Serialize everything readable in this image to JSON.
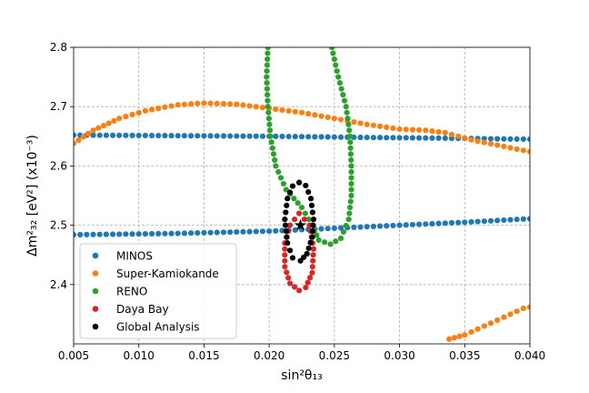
{
  "chart_data": {
    "type": "scatter",
    "title": "",
    "xlabel": "sin²θ₁₃",
    "ylabel": "Δm²₃₂ [eV²] (x10⁻³)",
    "xlim": [
      0.005,
      0.04
    ],
    "ylim": [
      2.3,
      2.8
    ],
    "xticks": [
      0.005,
      0.01,
      0.015,
      0.02,
      0.025,
      0.03,
      0.035,
      0.04
    ],
    "xtick_labels": [
      "0.005",
      "0.010",
      "0.015",
      "0.020",
      "0.025",
      "0.030",
      "0.035",
      "0.040"
    ],
    "yticks": [
      2.4,
      2.5,
      2.6,
      2.7,
      2.8
    ],
    "ytick_labels": [
      "2.4",
      "2.5",
      "2.6",
      "2.7",
      "2.8"
    ],
    "grid": true,
    "legend_position": "bottom-left",
    "best_fit": {
      "x": 0.0224,
      "y": 2.5,
      "marker": "star"
    },
    "series": [
      {
        "name": "MINOS",
        "color": "#1f77b4",
        "curves": [
          [
            [
              0.005,
              2.652
            ],
            [
              0.0125,
              2.651
            ],
            [
              0.02,
              2.65
            ],
            [
              0.0275,
              2.648
            ],
            [
              0.0325,
              2.647
            ],
            [
              0.04,
              2.645
            ]
          ],
          [
            [
              0.005,
              2.484
            ],
            [
              0.0125,
              2.486
            ],
            [
              0.02,
              2.49
            ],
            [
              0.025,
              2.495
            ],
            [
              0.03,
              2.5
            ],
            [
              0.035,
              2.505
            ],
            [
              0.04,
              2.511
            ]
          ]
        ]
      },
      {
        "name": "Super-Kamiokande",
        "color": "#ff7f0e",
        "curves": [
          [
            [
              0.005,
              2.638
            ],
            [
              0.0065,
              2.66
            ],
            [
              0.0085,
              2.68
            ],
            [
              0.0105,
              2.693
            ],
            [
              0.013,
              2.703
            ],
            [
              0.015,
              2.706
            ],
            [
              0.0175,
              2.704
            ],
            [
              0.02,
              2.697
            ],
            [
              0.0225,
              2.69
            ],
            [
              0.025,
              2.68
            ],
            [
              0.0275,
              2.67
            ],
            [
              0.03,
              2.662
            ],
            [
              0.032,
              2.66
            ],
            [
              0.0335,
              2.656
            ],
            [
              0.0355,
              2.644
            ],
            [
              0.0375,
              2.635
            ],
            [
              0.04,
              2.624
            ]
          ],
          [
            [
              0.0338,
              2.308
            ],
            [
              0.035,
              2.315
            ],
            [
              0.0365,
              2.33
            ],
            [
              0.038,
              2.345
            ],
            [
              0.0395,
              2.36
            ],
            [
              0.04,
              2.362
            ]
          ]
        ]
      },
      {
        "name": "RENO",
        "color": "#2ca02c",
        "curves": [
          [
            [
              0.0199,
              2.8
            ],
            [
              0.0198,
              2.75
            ],
            [
              0.0199,
              2.7
            ],
            [
              0.0201,
              2.65
            ],
            [
              0.0205,
              2.6
            ],
            [
              0.0213,
              2.56
            ],
            [
              0.0225,
              2.53
            ],
            [
              0.0233,
              2.5
            ],
            [
              0.0238,
              2.475
            ],
            [
              0.0247,
              2.468
            ],
            [
              0.0255,
              2.478
            ],
            [
              0.0261,
              2.51
            ],
            [
              0.0263,
              2.55
            ],
            [
              0.0263,
              2.6
            ],
            [
              0.0262,
              2.65
            ],
            [
              0.0259,
              2.7
            ],
            [
              0.0253,
              2.75
            ],
            [
              0.0248,
              2.8
            ]
          ]
        ]
      },
      {
        "name": "Daya Bay",
        "color": "#d62728",
        "curves": [
          [
            [
              0.0223,
              2.52
            ],
            [
              0.0231,
              2.5
            ],
            [
              0.0234,
              2.46
            ],
            [
              0.0233,
              2.42
            ],
            [
              0.0228,
              2.395
            ],
            [
              0.0223,
              2.39
            ],
            [
              0.0216,
              2.402
            ],
            [
              0.0212,
              2.43
            ],
            [
              0.0212,
              2.47
            ],
            [
              0.0216,
              2.5
            ],
            [
              0.0223,
              2.52
            ]
          ]
        ]
      },
      {
        "name": "Global Analysis",
        "color": "#000000",
        "curves": [
          [
            [
              0.0223,
              2.572
            ],
            [
              0.0228,
              2.567
            ],
            [
              0.0232,
              2.545
            ],
            [
              0.0234,
              2.51
            ],
            [
              0.0233,
              2.48
            ],
            [
              0.0229,
              2.452
            ],
            [
              0.0224,
              2.44
            ],
            [
              0.0218,
              2.445
            ],
            [
              0.0214,
              2.47
            ],
            [
              0.0212,
              2.51
            ],
            [
              0.0214,
              2.545
            ],
            [
              0.0218,
              2.566
            ],
            [
              0.0223,
              2.572
            ]
          ]
        ]
      }
    ]
  }
}
